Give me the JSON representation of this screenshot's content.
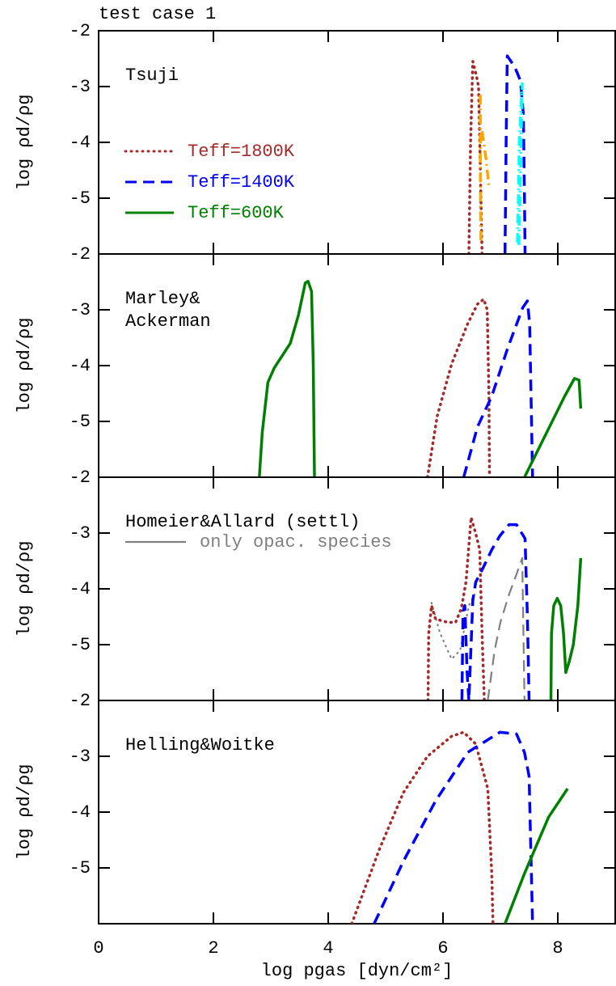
{
  "chart_data": [
    {
      "type": "line",
      "title": "test case 1",
      "annotation": [
        "Tsuji"
      ],
      "ylabel": "log ρd/ρg",
      "xlim": [
        0,
        9
      ],
      "ylim": [
        -6,
        -2
      ],
      "yticks": [
        -5,
        -4,
        -3,
        -2
      ],
      "legend": [
        {
          "label": "Teff=1800K",
          "color": "#a52a2a",
          "dash": "dotted"
        },
        {
          "label": "Teff=1400K",
          "color": "#0000ff",
          "dash": "dashed"
        },
        {
          "label": "Teff=600K",
          "color": "#008000",
          "dash": "solid"
        }
      ],
      "series": [
        {
          "color": "#a52a2a",
          "dash": "dotted",
          "x": [
            6.45,
            6.48,
            6.52,
            6.58,
            6.62,
            6.65,
            6.68
          ],
          "values": [
            -6,
            -4,
            -2.55,
            -2.8,
            -3.0,
            -4.5,
            -6
          ]
        },
        {
          "color": "#ffa500",
          "dash": "dashdot",
          "x": [
            6.65,
            6.65,
            6.66,
            null,
            6.68,
            6.75,
            6.8
          ],
          "values": [
            -3.15,
            -4.5,
            -5.8,
            null,
            -3.8,
            -4.3,
            -4.8
          ]
        },
        {
          "color": "#0000ff",
          "dash": "dashed",
          "x": [
            7.08,
            7.1,
            7.12,
            7.25,
            7.35,
            7.4,
            7.42,
            7.43
          ],
          "values": [
            -6,
            -4,
            -2.45,
            -2.65,
            -2.9,
            -3.5,
            -5,
            -6
          ]
        },
        {
          "color": "#00ffff",
          "dash": "dashdot",
          "x": [
            7.3,
            7.33,
            7.38,
            7.35,
            7.32
          ],
          "values": [
            -5.8,
            -4,
            -2.95,
            -4.5,
            -5.9
          ]
        }
      ]
    },
    {
      "type": "line",
      "annotation": [
        "Marley&",
        "Ackerman"
      ],
      "ylabel": "log ρd/ρg",
      "xlim": [
        0,
        9
      ],
      "ylim": [
        -6,
        -2
      ],
      "yticks": [
        -5,
        -4,
        -3,
        -2
      ],
      "series": [
        {
          "color": "#008000",
          "dash": "solid",
          "x": [
            2.8,
            2.85,
            2.95,
            3.06,
            3.34,
            3.48,
            3.6,
            3.65,
            3.71,
            3.74,
            3.76
          ],
          "values": [
            -6,
            -5.2,
            -4.3,
            -4.04,
            -3.6,
            -3.1,
            -2.52,
            -2.49,
            -2.67,
            -3.97,
            -6
          ]
        },
        {
          "color": "#a52a2a",
          "dash": "dotted",
          "x": [
            5.73,
            5.9,
            6.15,
            6.43,
            6.6,
            6.71,
            6.77,
            6.8,
            6.81
          ],
          "values": [
            -6,
            -4.9,
            -3.97,
            -3.25,
            -2.9,
            -2.81,
            -3.0,
            -4.5,
            -6
          ]
        },
        {
          "color": "#0000ff",
          "dash": "dashed",
          "x": [
            6.36,
            6.6,
            6.85,
            7.13,
            7.39,
            7.47,
            7.51,
            7.56
          ],
          "values": [
            -6,
            -5.1,
            -4.55,
            -3.68,
            -2.96,
            -2.84,
            -3.25,
            -6
          ]
        },
        {
          "color": "#008000",
          "dash": "solid",
          "x": [
            7.42,
            7.84,
            8.12,
            8.29,
            8.37,
            8.4
          ],
          "values": [
            -6,
            -5.13,
            -4.55,
            -4.23,
            -4.26,
            -4.77
          ]
        }
      ]
    },
    {
      "type": "line",
      "annotation": [
        "Homeier&Allard (settl)"
      ],
      "ylabel": "log ρd/ρg",
      "xlim": [
        0,
        9
      ],
      "ylim": [
        -6,
        -2
      ],
      "yticks": [
        -5,
        -4,
        -3,
        -2
      ],
      "legend": [
        {
          "label": "only opac. species",
          "color": "#808080",
          "dash": "solid"
        }
      ],
      "series": [
        {
          "color": "#808080",
          "dash": "dotted",
          "x": [
            5.8,
            5.95,
            6.15,
            6.3,
            6.45,
            6.55
          ],
          "values": [
            -4.25,
            -4.8,
            -5.26,
            -5.1,
            -4.3,
            -4.1
          ]
        },
        {
          "color": "#808080",
          "dash": "dashed",
          "x": [
            6.78,
            6.9,
            7.0,
            7.15,
            7.28,
            7.38,
            7.42
          ],
          "values": [
            -6,
            -5.1,
            -4.6,
            -4.1,
            -3.74,
            -3.45,
            -6
          ]
        },
        {
          "color": "#a52a2a",
          "dash": "dotted",
          "x": [
            5.74,
            5.75,
            5.8,
            5.87,
            6.08,
            6.22,
            6.32,
            6.4,
            6.49,
            6.57,
            6.64,
            6.68,
            6.72
          ],
          "values": [
            -6,
            -4.8,
            -4.3,
            -4.54,
            -4.6,
            -4.6,
            -4.35,
            -3.88,
            -2.72,
            -3.01,
            -3.3,
            -4.8,
            -6
          ]
        },
        {
          "color": "#0000ff",
          "dash": "dashed",
          "x": [
            6.33,
            6.35,
            6.38,
            6.42,
            6.45,
            6.52,
            6.57,
            6.71,
            6.85,
            6.99,
            7.15,
            7.28,
            7.37,
            7.43,
            7.47,
            7.5
          ],
          "values": [
            -6,
            -4.4,
            -4.3,
            -5.5,
            -6,
            -4.2,
            -3.88,
            -3.6,
            -3.3,
            -3.05,
            -2.85,
            -2.85,
            -3.0,
            -3.1,
            -4.5,
            -6
          ]
        },
        {
          "color": "#008000",
          "dash": "solid",
          "x": [
            7.88,
            7.89,
            7.93,
            7.99,
            8.05,
            8.1,
            8.14,
            8.2,
            8.27,
            8.35,
            8.4
          ],
          "values": [
            -6,
            -4.8,
            -4.3,
            -4.17,
            -4.3,
            -4.8,
            -5.5,
            -5.3,
            -5.0,
            -4.3,
            -3.45
          ]
        }
      ]
    },
    {
      "type": "line",
      "annotation": [
        "Helling&Woitke"
      ],
      "ylabel": "log ρd/ρg",
      "xlabel": "log pgas [dyn/cm²]",
      "xlim": [
        0,
        9
      ],
      "ylim": [
        -6,
        -2
      ],
      "yticks": [
        -5,
        -4,
        -3,
        -2
      ],
      "xticks": [
        0,
        2,
        4,
        6,
        8
      ],
      "series": [
        {
          "color": "#a52a2a",
          "dash": "dotted",
          "x": [
            4.41,
            4.89,
            5.31,
            5.73,
            6.15,
            6.36,
            6.57,
            6.78,
            6.85,
            6.87
          ],
          "values": [
            -6,
            -4.67,
            -3.65,
            -3.0,
            -2.64,
            -2.57,
            -2.78,
            -3.58,
            -5.1,
            -6
          ]
        },
        {
          "color": "#0000ff",
          "dash": "dashed",
          "x": [
            4.8,
            5.31,
            5.87,
            6.43,
            6.99,
            7.28,
            7.42,
            7.5,
            7.56
          ],
          "values": [
            -6,
            -4.88,
            -3.8,
            -2.93,
            -2.57,
            -2.6,
            -2.93,
            -3.36,
            -6
          ]
        },
        {
          "color": "#008000",
          "dash": "solid",
          "x": [
            7.08,
            7.42,
            7.84,
            8.17
          ],
          "values": [
            -6,
            -5.1,
            -4.09,
            -3.58
          ]
        }
      ]
    }
  ]
}
